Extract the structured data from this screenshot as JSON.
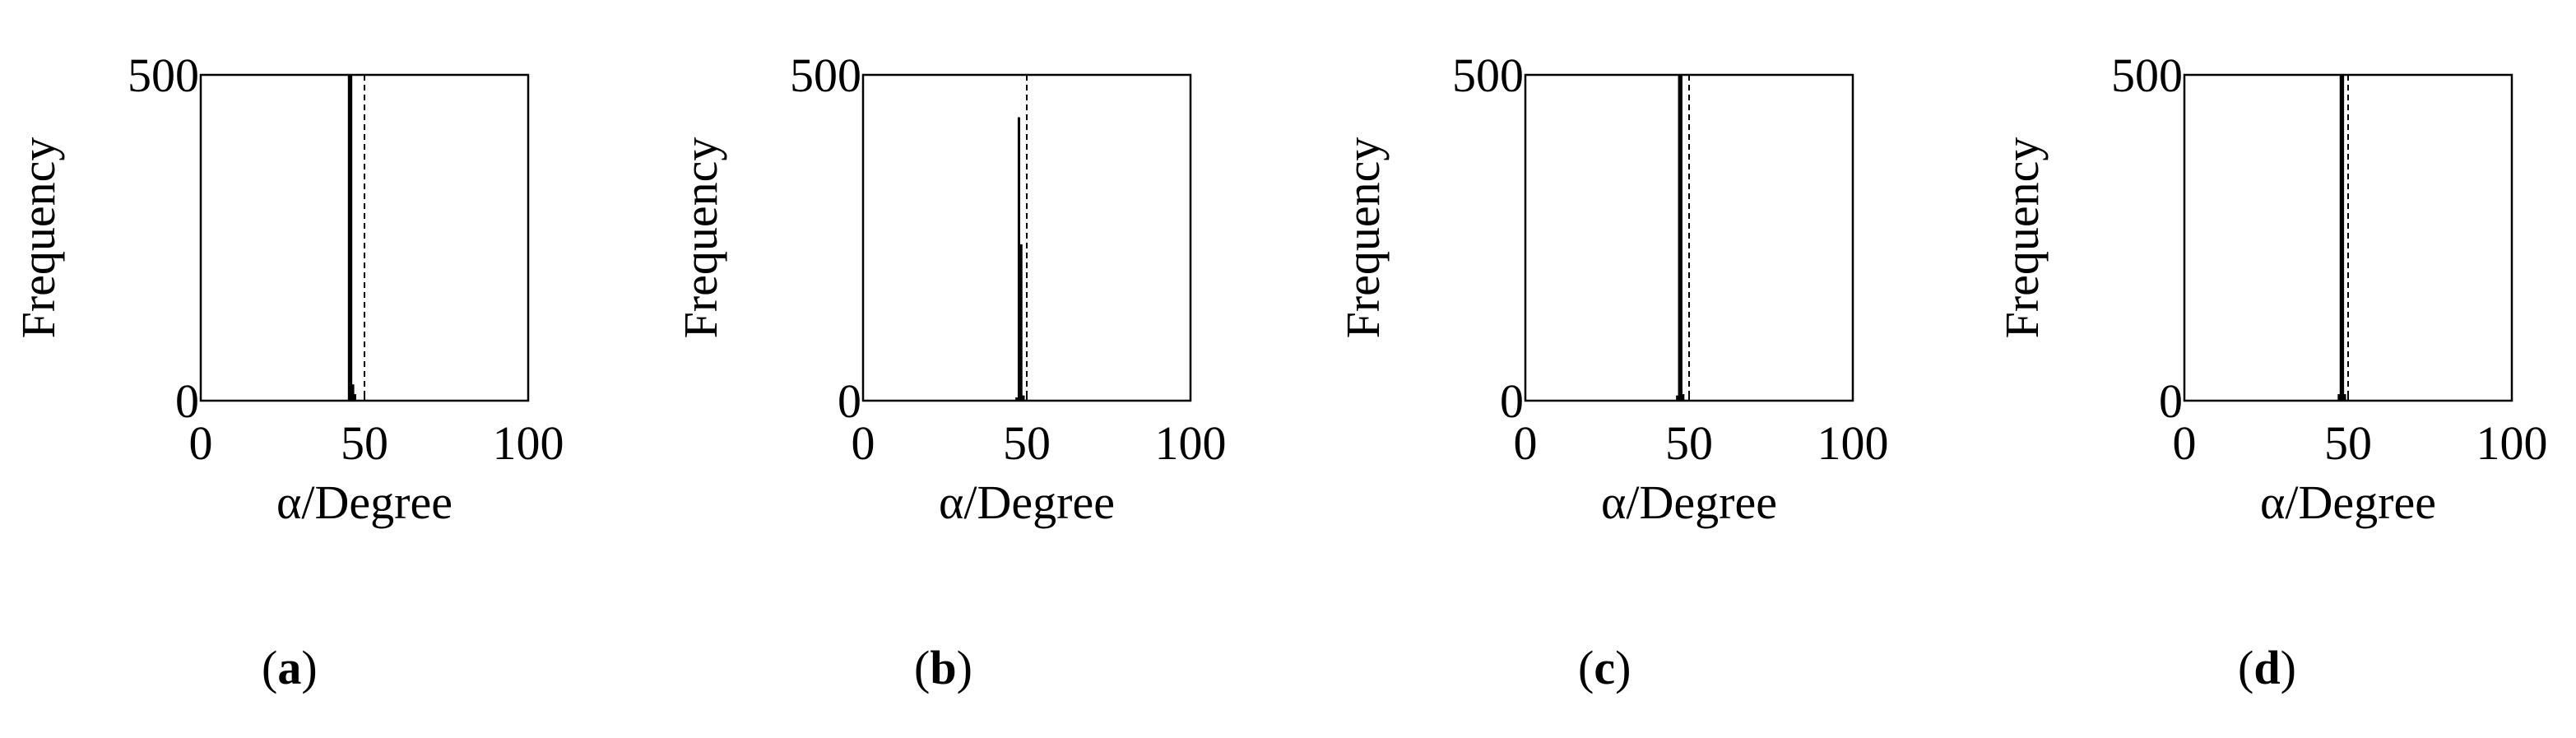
{
  "chart_data": [
    {
      "type": "bar",
      "panel": "a",
      "xlabel": "α/Degree",
      "ylabel": "Frequency",
      "xlim": [
        0,
        100
      ],
      "ylim": [
        0,
        500
      ],
      "xticks": [
        0,
        50,
        100
      ],
      "yticks": [
        0,
        500
      ],
      "bars": [
        {
          "x": 45.3,
          "value": 500
        },
        {
          "x": 45.9,
          "value": 500
        },
        {
          "x": 46.5,
          "value": 25
        },
        {
          "x": 47.1,
          "value": 10
        }
      ],
      "reference_line": {
        "x": 50,
        "style": "dashed"
      }
    },
    {
      "type": "bar",
      "panel": "b",
      "xlabel": "α/Degree",
      "ylabel": "Frequency",
      "xlim": [
        0,
        100
      ],
      "ylim": [
        0,
        500
      ],
      "xticks": [
        0,
        50,
        100
      ],
      "yticks": [
        0,
        500
      ],
      "bars": [
        {
          "x": 46.9,
          "value": 5
        },
        {
          "x": 47.6,
          "value": 435
        },
        {
          "x": 48.3,
          "value": 240
        },
        {
          "x": 49.0,
          "value": 8
        }
      ],
      "reference_line": {
        "x": 50,
        "style": "dashed"
      }
    },
    {
      "type": "bar",
      "panel": "c",
      "xlabel": "α/Degree",
      "ylabel": "Frequency",
      "xlim": [
        0,
        100
      ],
      "ylim": [
        0,
        500
      ],
      "xticks": [
        0,
        50,
        100
      ],
      "yticks": [
        0,
        500
      ],
      "bars": [
        {
          "x": 46.4,
          "value": 8
        },
        {
          "x": 47.0,
          "value": 500
        },
        {
          "x": 47.6,
          "value": 500
        },
        {
          "x": 48.2,
          "value": 10
        }
      ],
      "reference_line": {
        "x": 50,
        "style": "dashed"
      }
    },
    {
      "type": "bar",
      "panel": "d",
      "xlabel": "α/Degree",
      "ylabel": "Frequency",
      "xlim": [
        0,
        100
      ],
      "ylim": [
        0,
        500
      ],
      "xticks": [
        0,
        50,
        100
      ],
      "yticks": [
        0,
        500
      ],
      "bars": [
        {
          "x": 47.2,
          "value": 10
        },
        {
          "x": 47.8,
          "value": 500
        },
        {
          "x": 48.4,
          "value": 500
        },
        {
          "x": 49.0,
          "value": 10
        }
      ],
      "reference_line": {
        "x": 50,
        "style": "dashed"
      }
    }
  ],
  "captions": [
    "a",
    "b",
    "c",
    "d"
  ]
}
